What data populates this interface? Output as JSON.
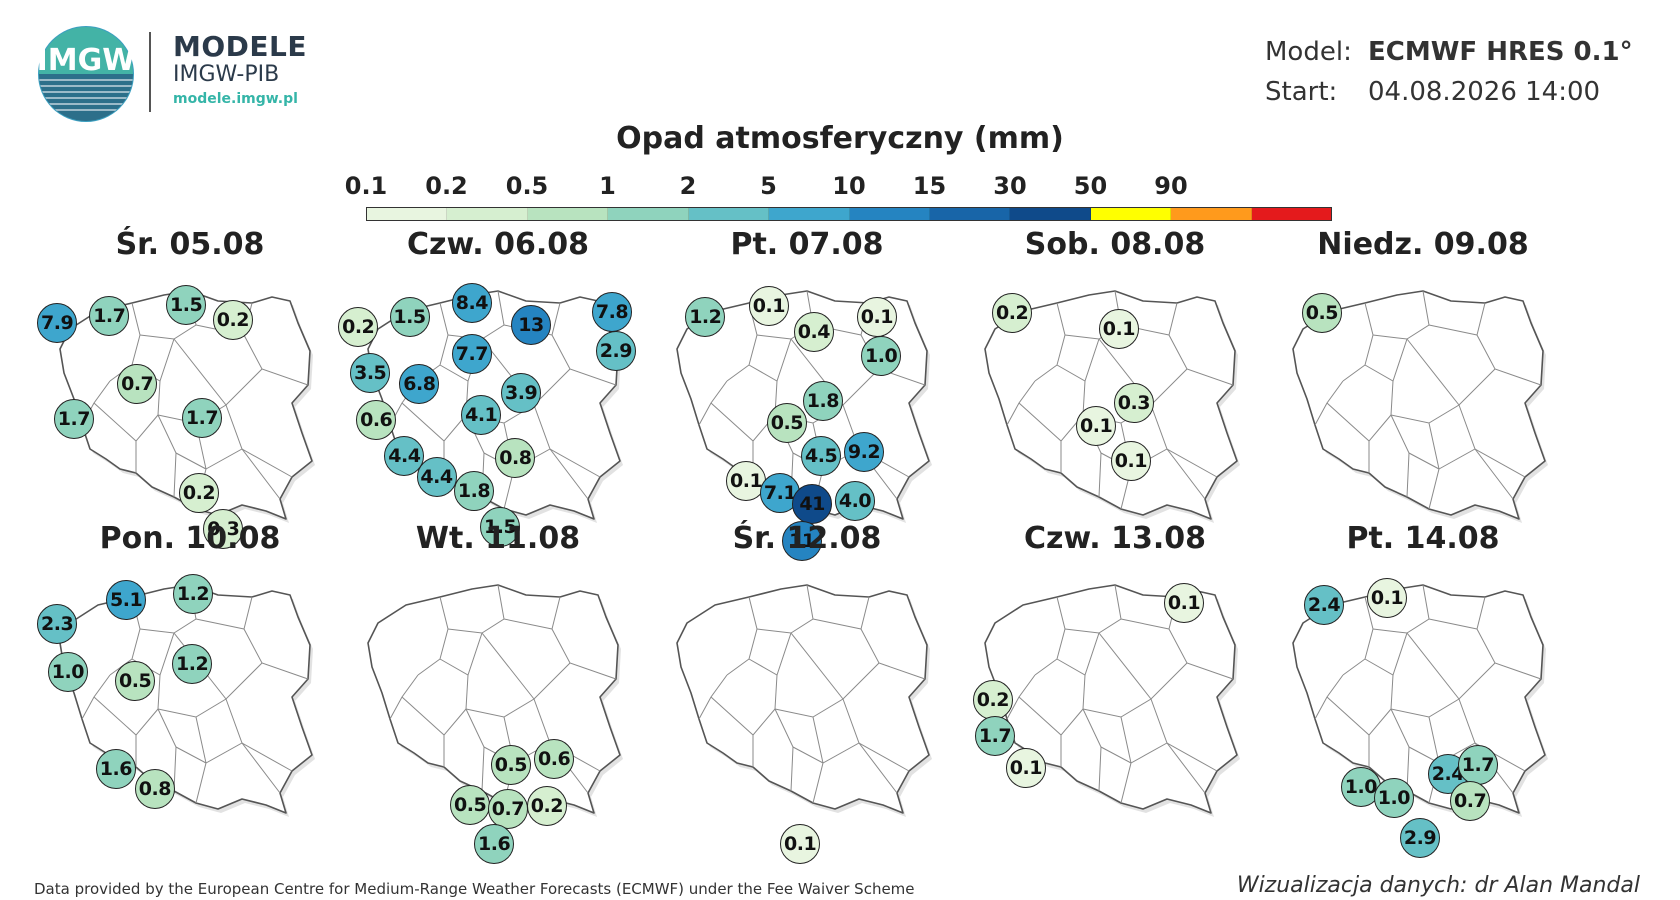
{
  "header": {
    "logo_text": "IMGW",
    "brand_name": "MODELE",
    "brand_sub": "IMGW-PIB",
    "brand_url": "modele.imgw.pl",
    "model_label": "Model:",
    "model_value": "ECMWF HRES 0.1°",
    "start_label": "Start:",
    "start_value": "04.08.2026 14:00"
  },
  "title": "Opad atmosferyczny (mm)",
  "legend": {
    "ticks": [
      "0.1",
      "0.2",
      "0.5",
      "1",
      "2",
      "5",
      "10",
      "15",
      "30",
      "50",
      "90"
    ],
    "colors": [
      "#e8f5e0",
      "#d6efd0",
      "#b8e3bf",
      "#8fd3bd",
      "#65c0c6",
      "#3ea6cd",
      "#2584c1",
      "#1865a8",
      "#0f4a8a",
      "#ffff00",
      "#ff9a1c",
      "#e41a1c"
    ]
  },
  "panels": [
    {
      "day": "Śr. 05.08",
      "markers": [
        {
          "v": "7.9",
          "x": 0.057,
          "y": 0.196
        },
        {
          "v": "1.7",
          "x": 0.231,
          "y": 0.167
        },
        {
          "v": "1.5",
          "x": 0.487,
          "y": 0.127
        },
        {
          "v": "0.2",
          "x": 0.643,
          "y": 0.186
        },
        {
          "v": "0.7",
          "x": 0.324,
          "y": 0.434
        },
        {
          "v": "1.7",
          "x": 0.113,
          "y": 0.572
        },
        {
          "v": "1.7",
          "x": 0.54,
          "y": 0.569
        },
        {
          "v": "0.2",
          "x": 0.53,
          "y": 0.864
        },
        {
          "v": "0.3",
          "x": 0.611,
          "y": 1.003
        }
      ]
    },
    {
      "day": "Czw. 06.08",
      "markers": [
        {
          "v": "0.2",
          "x": 0.034,
          "y": 0.21
        },
        {
          "v": "1.5",
          "x": 0.205,
          "y": 0.174
        },
        {
          "v": "8.4",
          "x": 0.413,
          "y": 0.116
        },
        {
          "v": "13",
          "x": 0.61,
          "y": 0.202
        },
        {
          "v": "7.8",
          "x": 0.88,
          "y": 0.151
        },
        {
          "v": "2.9",
          "x": 0.893,
          "y": 0.307
        },
        {
          "v": "7.7",
          "x": 0.413,
          "y": 0.318
        },
        {
          "v": "3.5",
          "x": 0.074,
          "y": 0.391
        },
        {
          "v": "6.8",
          "x": 0.238,
          "y": 0.434
        },
        {
          "v": "3.9",
          "x": 0.577,
          "y": 0.47
        },
        {
          "v": "0.6",
          "x": 0.094,
          "y": 0.575
        },
        {
          "v": "4.1",
          "x": 0.444,
          "y": 0.557
        },
        {
          "v": "4.4",
          "x": 0.188,
          "y": 0.719
        },
        {
          "v": "0.8",
          "x": 0.558,
          "y": 0.727
        },
        {
          "v": "4.4",
          "x": 0.295,
          "y": 0.8
        },
        {
          "v": "1.8",
          "x": 0.42,
          "y": 0.856
        },
        {
          "v": "1.5",
          "x": 0.507,
          "y": 0.996
        }
      ]
    },
    {
      "day": "Pt. 07.08",
      "markers": [
        {
          "v": "1.2",
          "x": 0.161,
          "y": 0.174
        },
        {
          "v": "0.1",
          "x": 0.373,
          "y": 0.131
        },
        {
          "v": "0.4",
          "x": 0.523,
          "y": 0.23
        },
        {
          "v": "0.1",
          "x": 0.733,
          "y": 0.174
        },
        {
          "v": "1.0",
          "x": 0.747,
          "y": 0.325
        },
        {
          "v": "1.8",
          "x": 0.553,
          "y": 0.502
        },
        {
          "v": "0.5",
          "x": 0.433,
          "y": 0.587
        },
        {
          "v": "4.5",
          "x": 0.547,
          "y": 0.719
        },
        {
          "v": "9.2",
          "x": 0.69,
          "y": 0.7
        },
        {
          "v": "0.1",
          "x": 0.297,
          "y": 0.815
        },
        {
          "v": "7.1",
          "x": 0.41,
          "y": 0.864
        },
        {
          "v": "41",
          "x": 0.517,
          "y": 0.904
        },
        {
          "v": "4.0",
          "x": 0.66,
          "y": 0.896
        },
        {
          "v": "11",
          "x": 0.483,
          "y": 1.051
        }
      ]
    },
    {
      "day": "Sob. 08.08",
      "markers": [
        {
          "v": "0.2",
          "x": 0.157,
          "y": 0.155
        },
        {
          "v": "0.1",
          "x": 0.513,
          "y": 0.218
        },
        {
          "v": "0.3",
          "x": 0.563,
          "y": 0.509
        },
        {
          "v": "0.1",
          "x": 0.437,
          "y": 0.601
        },
        {
          "v": "0.1",
          "x": 0.553,
          "y": 0.737
        }
      ]
    },
    {
      "day": "Niedz. 09.08",
      "markers": [
        {
          "v": "0.5",
          "x": 0.163,
          "y": 0.155
        }
      ]
    },
    {
      "day": "Pon. 10.08",
      "markers": [
        {
          "v": "5.1",
          "x": 0.287,
          "y": 0.129
        },
        {
          "v": "1.2",
          "x": 0.51,
          "y": 0.105
        },
        {
          "v": "2.3",
          "x": 0.057,
          "y": 0.225
        },
        {
          "v": "1.2",
          "x": 0.507,
          "y": 0.381
        },
        {
          "v": "1.0",
          "x": 0.093,
          "y": 0.412
        },
        {
          "v": "0.5",
          "x": 0.317,
          "y": 0.449
        },
        {
          "v": "1.6",
          "x": 0.253,
          "y": 0.794
        },
        {
          "v": "0.8",
          "x": 0.383,
          "y": 0.872
        }
      ]
    },
    {
      "day": "Wt. 11.08",
      "markers": [
        {
          "v": "0.5",
          "x": 0.543,
          "y": 0.776
        },
        {
          "v": "0.6",
          "x": 0.687,
          "y": 0.751
        },
        {
          "v": "0.5",
          "x": 0.407,
          "y": 0.933
        },
        {
          "v": "0.7",
          "x": 0.533,
          "y": 0.95
        },
        {
          "v": "0.2",
          "x": 0.663,
          "y": 0.937
        },
        {
          "v": "1.6",
          "x": 0.487,
          "y": 1.088
        }
      ]
    },
    {
      "day": "Śr. 12.08",
      "markers": [
        {
          "v": "0.1",
          "x": 0.477,
          "y": 1.088
        }
      ]
    },
    {
      "day": "Czw. 13.08",
      "markers": [
        {
          "v": "0.1",
          "x": 0.73,
          "y": 0.143
        },
        {
          "v": "0.2",
          "x": 0.093,
          "y": 0.522
        },
        {
          "v": "1.7",
          "x": 0.1,
          "y": 0.663
        },
        {
          "v": "0.1",
          "x": 0.203,
          "y": 0.788
        }
      ]
    },
    {
      "day": "Pt. 14.08",
      "markers": [
        {
          "v": "2.4",
          "x": 0.17,
          "y": 0.149
        },
        {
          "v": "0.1",
          "x": 0.38,
          "y": 0.121
        },
        {
          "v": "2.4",
          "x": 0.583,
          "y": 0.81
        },
        {
          "v": "1.7",
          "x": 0.683,
          "y": 0.778
        },
        {
          "v": "1.0",
          "x": 0.293,
          "y": 0.863
        },
        {
          "v": "1.0",
          "x": 0.403,
          "y": 0.906
        },
        {
          "v": "0.7",
          "x": 0.657,
          "y": 0.918
        },
        {
          "v": "2.9",
          "x": 0.49,
          "y": 1.063
        }
      ]
    }
  ],
  "footer": {
    "left": "Data provided by the European Centre for Medium-Range Weather Forecasts (ECMWF) under the Fee Waiver Scheme",
    "right": "Wizualizacja danych: dr Alan Mandal"
  }
}
